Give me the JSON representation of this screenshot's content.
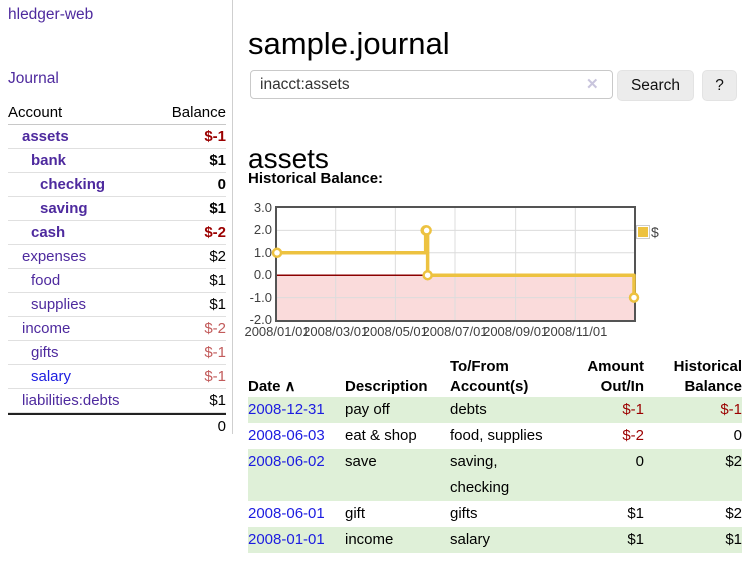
{
  "app": {
    "brand": "hledger-web",
    "nav_journal": "Journal"
  },
  "sidebar": {
    "header": {
      "account": "Account",
      "balance": "Balance"
    },
    "rows": [
      {
        "label": "assets",
        "depth": 1,
        "bold": true,
        "balance": "$-1",
        "balance_color": "red",
        "link_color": "purple"
      },
      {
        "label": "bank",
        "depth": 2,
        "bold": true,
        "balance": "$1",
        "balance_color": "black",
        "link_color": "purple"
      },
      {
        "label": "checking",
        "depth": 3,
        "bold": true,
        "balance": "0",
        "balance_color": "black",
        "link_color": "purple"
      },
      {
        "label": "saving",
        "depth": 3,
        "bold": true,
        "balance": "$1",
        "balance_color": "black",
        "link_color": "purple"
      },
      {
        "label": "cash",
        "depth": 2,
        "bold": true,
        "balance": "$-2",
        "balance_color": "red",
        "link_color": "purple"
      },
      {
        "label": "expenses",
        "depth": 1,
        "bold": false,
        "balance": "$2",
        "balance_color": "black",
        "link_color": "purple"
      },
      {
        "label": "food",
        "depth": 2,
        "bold": false,
        "balance": "$1",
        "balance_color": "black",
        "link_color": "purple"
      },
      {
        "label": "supplies",
        "depth": 2,
        "bold": false,
        "balance": "$1",
        "balance_color": "black",
        "link_color": "purple"
      },
      {
        "label": "income",
        "depth": 1,
        "bold": false,
        "balance": "$-2",
        "balance_color": "rose",
        "link_color": "purple"
      },
      {
        "label": "gifts",
        "depth": 2,
        "bold": false,
        "balance": "$-1",
        "balance_color": "rose",
        "link_color": "purple"
      },
      {
        "label": "salary",
        "depth": 2,
        "bold": false,
        "balance": "$-1",
        "balance_color": "rose",
        "link_color": "blue"
      },
      {
        "label": "liabilities:debts",
        "depth": 1,
        "bold": false,
        "balance": "$1",
        "balance_color": "black",
        "link_color": "purple"
      }
    ],
    "total": "0"
  },
  "header": {
    "title": "sample.journal"
  },
  "search": {
    "value": "inacct:assets",
    "clear_icon": "✕",
    "button": "Search",
    "help_button": "?"
  },
  "main": {
    "heading": "assets",
    "chart_label": "Historical Balance:"
  },
  "chart_data": {
    "type": "line",
    "title": "Historical Balance",
    "step": true,
    "series": [
      {
        "name": "$",
        "color": "#edc240",
        "points": [
          {
            "date": "2008-01-01",
            "day": 0,
            "value": 1
          },
          {
            "date": "2008-06-01",
            "day": 152,
            "value": 2
          },
          {
            "date": "2008-06-02",
            "day": 153,
            "value": 2
          },
          {
            "date": "2008-06-03",
            "day": 154,
            "value": 0
          },
          {
            "date": "2008-12-31",
            "day": 365,
            "value": -1
          }
        ]
      }
    ],
    "x_ticks": [
      {
        "label": "2008/01/01",
        "day": 0
      },
      {
        "label": "2008/03/01",
        "day": 60
      },
      {
        "label": "2008/05/01",
        "day": 121
      },
      {
        "label": "2008/07/01",
        "day": 182
      },
      {
        "label": "2008/09/01",
        "day": 244
      },
      {
        "label": "2008/11/01",
        "day": 305
      }
    ],
    "y_ticks": [
      "3.0",
      "2.0",
      "1.0",
      "0.0",
      "-1.0",
      "-2.0"
    ],
    "ylim": [
      -2,
      3
    ],
    "xlim_days": [
      0,
      365
    ],
    "grid": true,
    "grid_color": "#dcdcdc",
    "border_color": "#545454",
    "negative_region_color": "#fadbdb",
    "zero_line_color": "#8b0000",
    "legend": {
      "position": "top-right",
      "label": "$",
      "swatch_color": "#edc240"
    }
  },
  "table": {
    "columns": [
      {
        "lines": [
          "Date"
        ],
        "sort": "∧",
        "align": "left"
      },
      {
        "lines": [
          "Description"
        ],
        "align": "left"
      },
      {
        "lines": [
          "To/From",
          "Account(s)"
        ],
        "align": "left"
      },
      {
        "lines": [
          "Amount",
          "Out/In"
        ],
        "align": "right"
      },
      {
        "lines": [
          "Historical",
          "Balance"
        ],
        "align": "right"
      }
    ],
    "rows": [
      {
        "date": "2008-12-31",
        "description": "pay off",
        "accounts": "debts",
        "amount": "$-1",
        "amount_neg": true,
        "balance": "$-1",
        "balance_neg": true
      },
      {
        "date": "2008-06-03",
        "description": "eat & shop",
        "accounts": "food, supplies",
        "amount": "$-2",
        "amount_neg": true,
        "balance": "0",
        "balance_neg": false
      },
      {
        "date": "2008-06-02",
        "description": "save",
        "accounts": "saving, checking",
        "amount": "0",
        "amount_neg": false,
        "balance": "$2",
        "balance_neg": false
      },
      {
        "date": "2008-06-01",
        "description": "gift",
        "accounts": "gifts",
        "amount": "$1",
        "amount_neg": false,
        "balance": "$2",
        "balance_neg": false
      },
      {
        "date": "2008-01-01",
        "description": "income",
        "accounts": "salary",
        "amount": "$1",
        "amount_neg": false,
        "balance": "$1",
        "balance_neg": false
      }
    ]
  }
}
